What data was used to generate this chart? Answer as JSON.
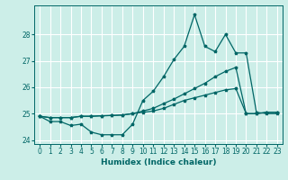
{
  "xlabel": "Humidex (Indice chaleur)",
  "background_color": "#cceee8",
  "grid_color": "#ffffff",
  "line_color": "#006666",
  "x_values": [
    0,
    1,
    2,
    3,
    4,
    5,
    6,
    7,
    8,
    9,
    10,
    11,
    12,
    13,
    14,
    15,
    16,
    17,
    18,
    19,
    20,
    21,
    22,
    23
  ],
  "series1": [
    24.9,
    24.7,
    24.7,
    24.55,
    24.6,
    24.3,
    24.2,
    24.2,
    24.2,
    24.6,
    25.5,
    25.85,
    26.4,
    27.05,
    27.55,
    28.75,
    27.55,
    27.35,
    28.0,
    27.3,
    27.3,
    25.05,
    25.0,
    25.0
  ],
  "series2": [
    24.9,
    24.85,
    24.85,
    24.85,
    24.9,
    24.9,
    24.92,
    24.93,
    24.95,
    25.0,
    25.1,
    25.2,
    25.38,
    25.55,
    25.75,
    25.95,
    26.15,
    26.4,
    26.6,
    26.75,
    25.0,
    25.0,
    25.05,
    25.05
  ],
  "series3": [
    24.9,
    24.85,
    24.85,
    24.85,
    24.9,
    24.9,
    24.92,
    24.93,
    24.95,
    25.0,
    25.05,
    25.1,
    25.2,
    25.35,
    25.5,
    25.6,
    25.7,
    25.8,
    25.9,
    25.95,
    25.0,
    25.0,
    25.05,
    25.05
  ],
  "ylim": [
    23.85,
    29.1
  ],
  "xlim": [
    -0.5,
    23.5
  ],
  "yticks": [
    24,
    25,
    26,
    27,
    28
  ],
  "xticks": [
    0,
    1,
    2,
    3,
    4,
    5,
    6,
    7,
    8,
    9,
    10,
    11,
    12,
    13,
    14,
    15,
    16,
    17,
    18,
    19,
    20,
    21,
    22,
    23
  ]
}
